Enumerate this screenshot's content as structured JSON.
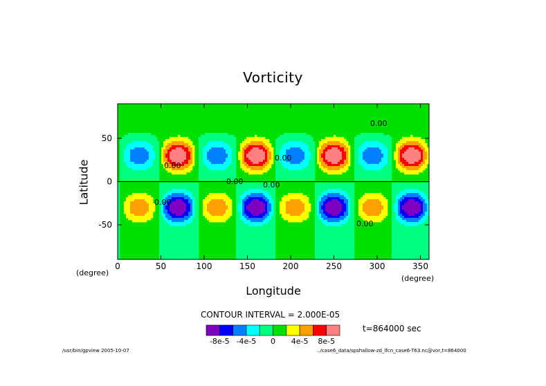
{
  "chart_data": {
    "type": "heatmap",
    "title": "Vorticity",
    "xlabel": "Longitude",
    "ylabel": "Latitude",
    "x_unit": "(degree)",
    "y_unit": "(degree)",
    "xlim": [
      0,
      360
    ],
    "ylim": [
      -90,
      90
    ],
    "x_ticks": [
      0,
      50,
      100,
      150,
      200,
      250,
      300,
      350
    ],
    "y_ticks": [
      50,
      0,
      -50
    ],
    "contour_interval_text": "CONTOUR INTERVAL = 2.000E-05",
    "contour_label": "0.00",
    "time_text": "t=864000 sec",
    "colorbar": {
      "levels": [
        -0.0001,
        -8e-05,
        -6e-05,
        -4e-05,
        -2e-05,
        0,
        2e-05,
        4e-05,
        6e-05,
        8e-05,
        0.0001
      ],
      "colors": [
        "#7f00bf",
        "#0000ff",
        "#0080ff",
        "#00ffff",
        "#00ff80",
        "#00e000",
        "#ffff00",
        "#ffa000",
        "#ff0000",
        "#ff8080"
      ],
      "tick_labels": [
        "-8e-5",
        "-4e-5",
        "0",
        "4e-5",
        "8e-5"
      ]
    },
    "field_pattern": {
      "wave_number": 4,
      "positive_centers_lon": [
        70,
        160,
        250,
        340
      ],
      "positive_center_lat": 30,
      "negative_centers_lon": [
        70,
        160,
        250,
        340
      ],
      "negative_center_lat": -30,
      "max_value": 0.0001,
      "min_value": -0.0001
    }
  },
  "footer": {
    "left": "/usr/bin/gpview  2005-10-07",
    "right": "../case6_data/spshallow-zd_lfcn_case6-T63.nc@vor,t=864000"
  }
}
